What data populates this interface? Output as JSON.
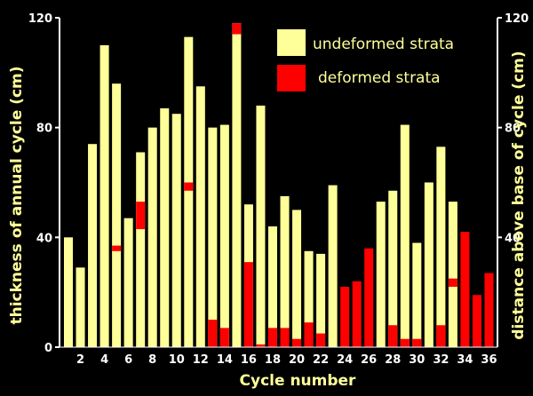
{
  "chart_data": {
    "type": "bar",
    "title": "",
    "xlabel": "Cycle number",
    "ylabel": "thickness of annual cycle (cm)",
    "ylabel_right": "distance above base of cycle (cm)",
    "ylim": [
      0,
      120
    ],
    "yticks": [
      "0",
      "40",
      "80",
      "120"
    ],
    "yticks_right": [
      "40",
      "80",
      "120"
    ],
    "xticks": [
      "2",
      "4",
      "6",
      "8",
      "10",
      "12",
      "14",
      "16",
      "18",
      "20",
      "22",
      "24",
      "26",
      "28",
      "30",
      "32",
      "34",
      "36"
    ],
    "categories": [
      "1",
      "2",
      "3",
      "4",
      "5",
      "6",
      "7",
      "8",
      "9",
      "10",
      "11",
      "12",
      "13",
      "14",
      "15",
      "16",
      "17",
      "18",
      "19",
      "20",
      "21",
      "22",
      "23",
      "24",
      "25",
      "26",
      "27",
      "28",
      "29",
      "30",
      "31",
      "32",
      "33",
      "34",
      "35",
      "36"
    ],
    "grid": false,
    "legend_position": "top-right",
    "legend": [
      {
        "label": "undeformed strata",
        "color": "#ffff99"
      },
      {
        "label": "deformed strata",
        "color": "#ff0000"
      }
    ],
    "colors": {
      "undeformed": "#ffff99",
      "deformed": "#ff0000",
      "background": "#000000",
      "axis": "#ffffff"
    },
    "thickness": [
      40,
      29,
      74,
      110,
      96,
      47,
      71,
      80,
      87,
      85,
      113,
      95,
      80,
      81,
      118,
      52,
      88,
      44,
      55,
      50,
      35,
      34,
      59,
      0,
      0,
      0,
      53,
      57,
      81,
      38,
      60,
      73,
      53,
      0,
      0,
      0
    ],
    "deformed_intervals": [
      [],
      [],
      [],
      [],
      [
        [
          35,
          37
        ]
      ],
      [],
      [
        [
          43,
          53
        ]
      ],
      [],
      [],
      [],
      [
        [
          57,
          60
        ]
      ],
      [],
      [
        [
          0,
          10
        ]
      ],
      [
        [
          0,
          7
        ]
      ],
      [
        [
          114,
          118
        ]
      ],
      [
        [
          0,
          31
        ]
      ],
      [
        [
          0,
          1
        ]
      ],
      [
        [
          0,
          7
        ]
      ],
      [
        [
          0,
          7
        ]
      ],
      [
        [
          0,
          3
        ]
      ],
      [
        [
          0,
          9
        ]
      ],
      [
        [
          0,
          5
        ]
      ],
      [],
      [
        [
          0,
          22
        ]
      ],
      [
        [
          0,
          24
        ]
      ],
      [
        [
          0,
          36
        ]
      ],
      [],
      [
        [
          0,
          8
        ]
      ],
      [
        [
          0,
          3
        ]
      ],
      [
        [
          0,
          3
        ]
      ],
      [],
      [
        [
          0,
          8
        ]
      ],
      [
        [
          22,
          25
        ]
      ],
      [
        [
          0,
          42
        ]
      ],
      [
        [
          0,
          19
        ]
      ],
      [
        [
          0,
          27
        ]
      ]
    ]
  }
}
